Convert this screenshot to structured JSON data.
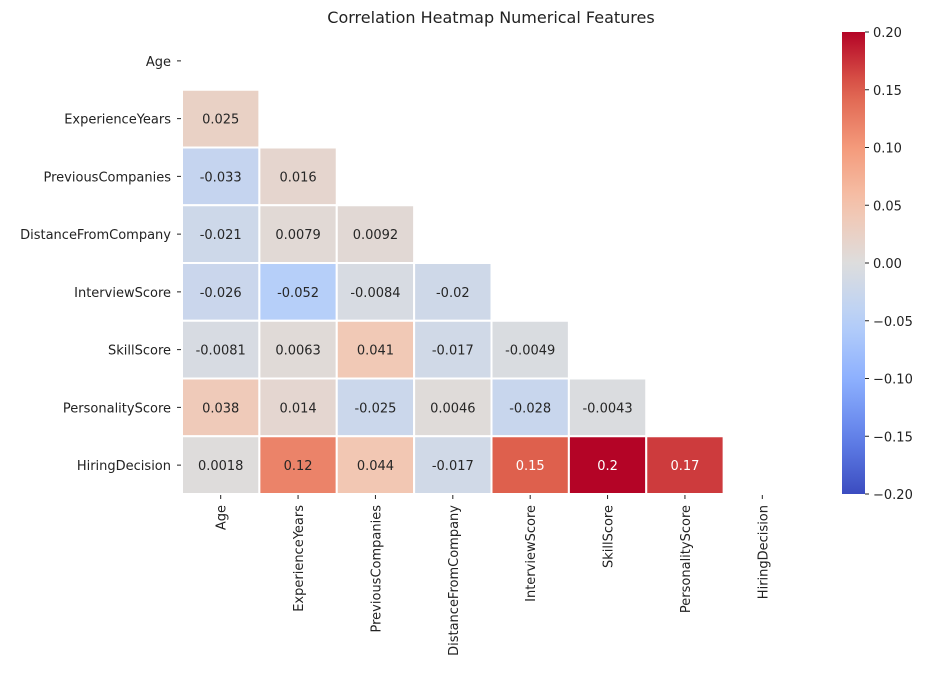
{
  "chart_data": {
    "type": "heatmap",
    "title": "Correlation Heatmap Numerical Features",
    "variables": [
      "Age",
      "ExperienceYears",
      "PreviousCompanies",
      "DistanceFromCompany",
      "InterviewScore",
      "SkillScore",
      "PersonalityScore",
      "HiringDecision"
    ],
    "lower_triangle": [
      [],
      [
        "0.025"
      ],
      [
        "-0.033",
        "0.016"
      ],
      [
        "-0.021",
        "0.0079",
        "0.0092"
      ],
      [
        "-0.026",
        "-0.052",
        "-0.0084",
        "-0.02"
      ],
      [
        "-0.0081",
        "0.0063",
        "0.041",
        "-0.017",
        "-0.0049"
      ],
      [
        "0.038",
        "0.014",
        "-0.025",
        "0.0046",
        "-0.028",
        "-0.0043"
      ],
      [
        "0.0018",
        "0.12",
        "0.044",
        "-0.017",
        "0.15",
        "0.2",
        "0.17"
      ]
    ],
    "mask": "upper triangle incl. diagonal",
    "colormap": "coolwarm",
    "vmin": -0.2,
    "vmax": 0.2,
    "colorbar_ticks": [
      "0.20",
      "0.15",
      "0.10",
      "0.05",
      "0.00",
      "−0.05",
      "−0.10",
      "−0.15",
      "−0.20"
    ],
    "colorbar_tick_values": [
      0.2,
      0.15,
      0.1,
      0.05,
      0.0,
      -0.05,
      -0.1,
      -0.15,
      -0.2
    ],
    "grid_line_color": "#ffffff"
  }
}
